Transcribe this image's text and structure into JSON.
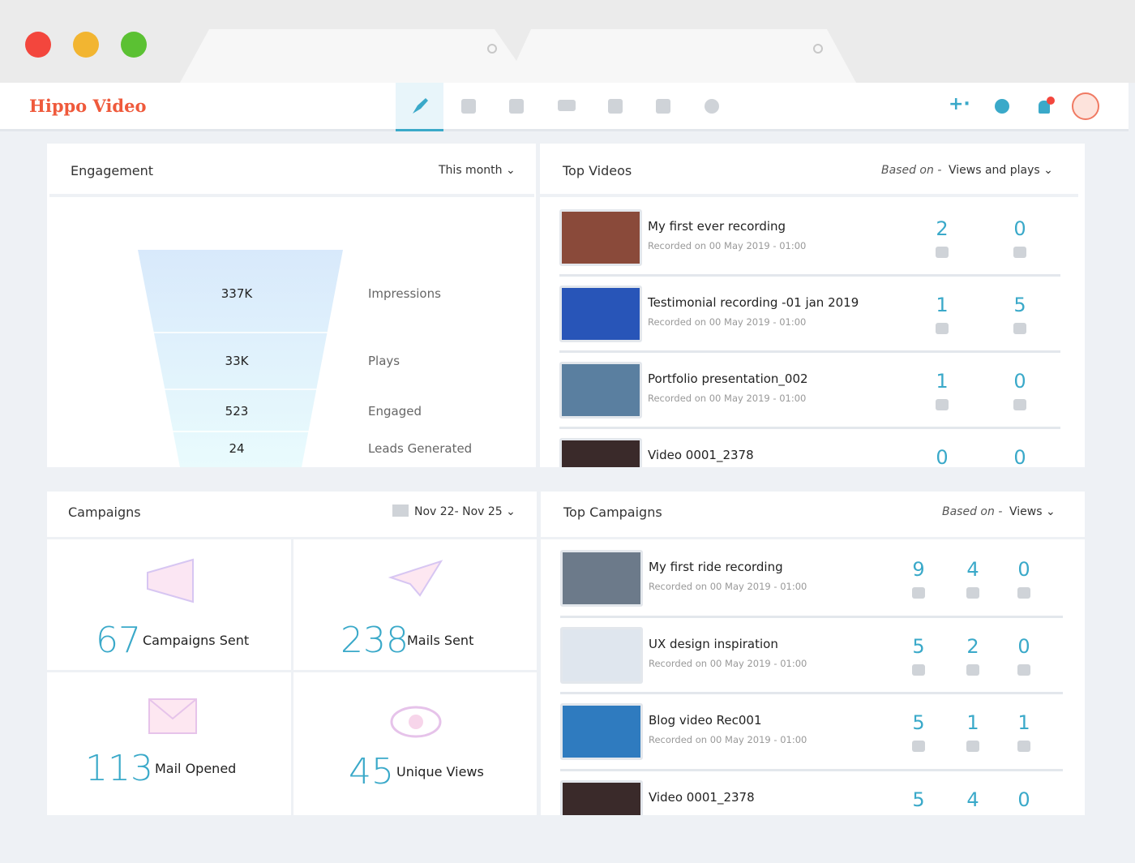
{
  "app": {
    "logo": "Hippo Video"
  },
  "engagement": {
    "title": "Engagement",
    "period": "This month",
    "funnel": [
      {
        "value": "337K",
        "label": "Impressions"
      },
      {
        "value": "33K",
        "label": "Plays"
      },
      {
        "value": "523",
        "label": "Engaged"
      },
      {
        "value": "24",
        "label": "Leads Generated"
      }
    ]
  },
  "top_videos": {
    "title": "Top Videos",
    "based_on": "Based on -",
    "sort": "Views and plays",
    "items": [
      {
        "title": "My first ever recording",
        "meta": "Recorded on 00 May 2019 - 01:00",
        "stats": [
          2,
          0
        ]
      },
      {
        "title": "Testimonial recording -01 jan 2019",
        "meta": "Recorded on 00 May 2019 - 01:00",
        "stats": [
          1,
          5
        ]
      },
      {
        "title": "Portfolio presentation_002",
        "meta": "Recorded on 00 May 2019 - 01:00",
        "stats": [
          1,
          0
        ]
      },
      {
        "title": "Video 0001_2378",
        "stats": [
          0,
          0
        ]
      }
    ]
  },
  "campaigns": {
    "title": "Campaigns",
    "date_range": "Nov 22- Nov 25",
    "stats": [
      {
        "value": 67,
        "label": "Campaigns Sent"
      },
      {
        "value": 238,
        "label": "Mails Sent"
      },
      {
        "value": 113,
        "label": "Mail Opened"
      },
      {
        "value": 45,
        "label": "Unique Views"
      }
    ]
  },
  "top_campaigns": {
    "title": "Top Campaigns",
    "based_on": "Based on -",
    "sort": "Views",
    "items": [
      {
        "title": "My first ride recording",
        "meta": "Recorded on 00 May 2019 - 01:00",
        "stats": [
          9,
          4,
          0
        ]
      },
      {
        "title": "UX design inspiration",
        "meta": "Recorded on 00 May 2019 - 01:00",
        "stats": [
          5,
          2,
          0
        ]
      },
      {
        "title": "Blog video Rec001",
        "meta": "Recorded on 00 May 2019 - 01:00",
        "stats": [
          5,
          1,
          1
        ]
      },
      {
        "title": "Video 0001_2378",
        "stats": [
          5,
          4,
          0
        ]
      }
    ]
  }
}
